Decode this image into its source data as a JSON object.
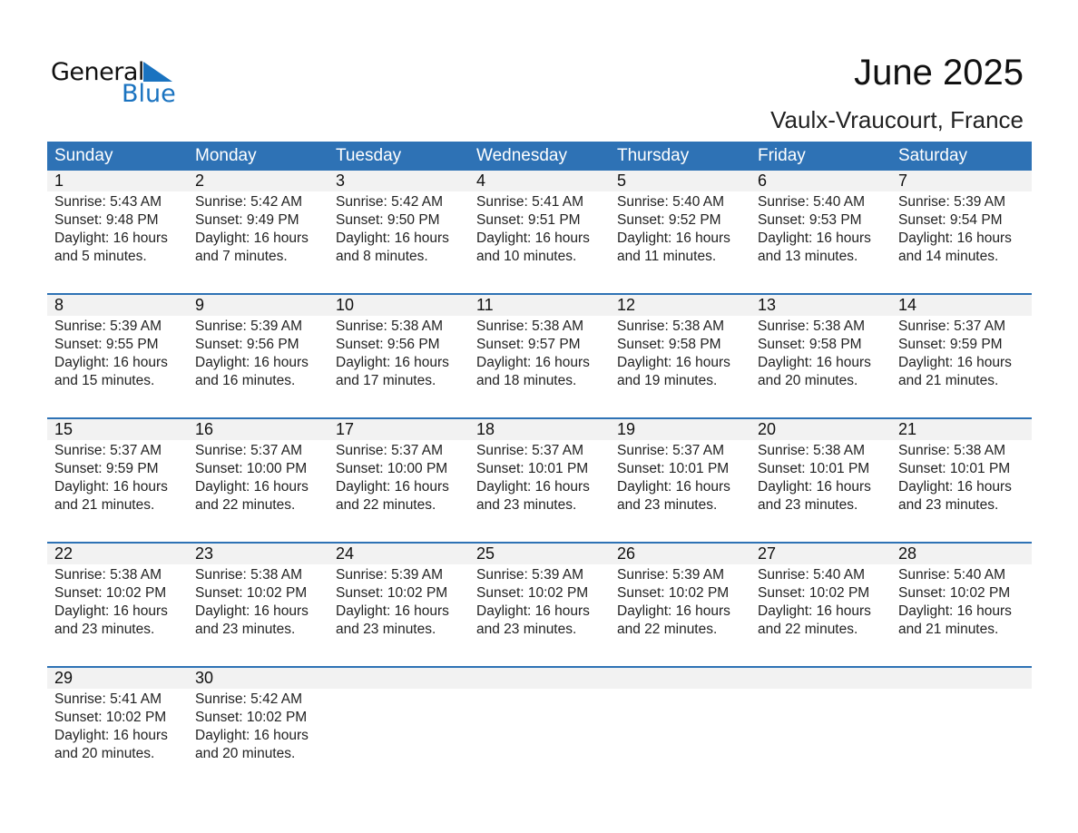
{
  "logo": {
    "word1": "General",
    "word2": "Blue"
  },
  "header": {
    "title": "June 2025",
    "location": "Vaulx-Vraucourt, France"
  },
  "colors": {
    "accent": "#2e72b5",
    "band": "#f2f2f2"
  },
  "weekdays": [
    "Sunday",
    "Monday",
    "Tuesday",
    "Wednesday",
    "Thursday",
    "Friday",
    "Saturday"
  ],
  "weeks": [
    [
      {
        "day": "1",
        "sunrise": "Sunrise: 5:43 AM",
        "sunset": "Sunset: 9:48 PM",
        "daylight": "Daylight: 16 hours",
        "minutes": "and 5 minutes."
      },
      {
        "day": "2",
        "sunrise": "Sunrise: 5:42 AM",
        "sunset": "Sunset: 9:49 PM",
        "daylight": "Daylight: 16 hours",
        "minutes": "and 7 minutes."
      },
      {
        "day": "3",
        "sunrise": "Sunrise: 5:42 AM",
        "sunset": "Sunset: 9:50 PM",
        "daylight": "Daylight: 16 hours",
        "minutes": "and 8 minutes."
      },
      {
        "day": "4",
        "sunrise": "Sunrise: 5:41 AM",
        "sunset": "Sunset: 9:51 PM",
        "daylight": "Daylight: 16 hours",
        "minutes": "and 10 minutes."
      },
      {
        "day": "5",
        "sunrise": "Sunrise: 5:40 AM",
        "sunset": "Sunset: 9:52 PM",
        "daylight": "Daylight: 16 hours",
        "minutes": "and 11 minutes."
      },
      {
        "day": "6",
        "sunrise": "Sunrise: 5:40 AM",
        "sunset": "Sunset: 9:53 PM",
        "daylight": "Daylight: 16 hours",
        "minutes": "and 13 minutes."
      },
      {
        "day": "7",
        "sunrise": "Sunrise: 5:39 AM",
        "sunset": "Sunset: 9:54 PM",
        "daylight": "Daylight: 16 hours",
        "minutes": "and 14 minutes."
      }
    ],
    [
      {
        "day": "8",
        "sunrise": "Sunrise: 5:39 AM",
        "sunset": "Sunset: 9:55 PM",
        "daylight": "Daylight: 16 hours",
        "minutes": "and 15 minutes."
      },
      {
        "day": "9",
        "sunrise": "Sunrise: 5:39 AM",
        "sunset": "Sunset: 9:56 PM",
        "daylight": "Daylight: 16 hours",
        "minutes": "and 16 minutes."
      },
      {
        "day": "10",
        "sunrise": "Sunrise: 5:38 AM",
        "sunset": "Sunset: 9:56 PM",
        "daylight": "Daylight: 16 hours",
        "minutes": "and 17 minutes."
      },
      {
        "day": "11",
        "sunrise": "Sunrise: 5:38 AM",
        "sunset": "Sunset: 9:57 PM",
        "daylight": "Daylight: 16 hours",
        "minutes": "and 18 minutes."
      },
      {
        "day": "12",
        "sunrise": "Sunrise: 5:38 AM",
        "sunset": "Sunset: 9:58 PM",
        "daylight": "Daylight: 16 hours",
        "minutes": "and 19 minutes."
      },
      {
        "day": "13",
        "sunrise": "Sunrise: 5:38 AM",
        "sunset": "Sunset: 9:58 PM",
        "daylight": "Daylight: 16 hours",
        "minutes": "and 20 minutes."
      },
      {
        "day": "14",
        "sunrise": "Sunrise: 5:37 AM",
        "sunset": "Sunset: 9:59 PM",
        "daylight": "Daylight: 16 hours",
        "minutes": "and 21 minutes."
      }
    ],
    [
      {
        "day": "15",
        "sunrise": "Sunrise: 5:37 AM",
        "sunset": "Sunset: 9:59 PM",
        "daylight": "Daylight: 16 hours",
        "minutes": "and 21 minutes."
      },
      {
        "day": "16",
        "sunrise": "Sunrise: 5:37 AM",
        "sunset": "Sunset: 10:00 PM",
        "daylight": "Daylight: 16 hours",
        "minutes": "and 22 minutes."
      },
      {
        "day": "17",
        "sunrise": "Sunrise: 5:37 AM",
        "sunset": "Sunset: 10:00 PM",
        "daylight": "Daylight: 16 hours",
        "minutes": "and 22 minutes."
      },
      {
        "day": "18",
        "sunrise": "Sunrise: 5:37 AM",
        "sunset": "Sunset: 10:01 PM",
        "daylight": "Daylight: 16 hours",
        "minutes": "and 23 minutes."
      },
      {
        "day": "19",
        "sunrise": "Sunrise: 5:37 AM",
        "sunset": "Sunset: 10:01 PM",
        "daylight": "Daylight: 16 hours",
        "minutes": "and 23 minutes."
      },
      {
        "day": "20",
        "sunrise": "Sunrise: 5:38 AM",
        "sunset": "Sunset: 10:01 PM",
        "daylight": "Daylight: 16 hours",
        "minutes": "and 23 minutes."
      },
      {
        "day": "21",
        "sunrise": "Sunrise: 5:38 AM",
        "sunset": "Sunset: 10:01 PM",
        "daylight": "Daylight: 16 hours",
        "minutes": "and 23 minutes."
      }
    ],
    [
      {
        "day": "22",
        "sunrise": "Sunrise: 5:38 AM",
        "sunset": "Sunset: 10:02 PM",
        "daylight": "Daylight: 16 hours",
        "minutes": "and 23 minutes."
      },
      {
        "day": "23",
        "sunrise": "Sunrise: 5:38 AM",
        "sunset": "Sunset: 10:02 PM",
        "daylight": "Daylight: 16 hours",
        "minutes": "and 23 minutes."
      },
      {
        "day": "24",
        "sunrise": "Sunrise: 5:39 AM",
        "sunset": "Sunset: 10:02 PM",
        "daylight": "Daylight: 16 hours",
        "minutes": "and 23 minutes."
      },
      {
        "day": "25",
        "sunrise": "Sunrise: 5:39 AM",
        "sunset": "Sunset: 10:02 PM",
        "daylight": "Daylight: 16 hours",
        "minutes": "and 23 minutes."
      },
      {
        "day": "26",
        "sunrise": "Sunrise: 5:39 AM",
        "sunset": "Sunset: 10:02 PM",
        "daylight": "Daylight: 16 hours",
        "minutes": "and 22 minutes."
      },
      {
        "day": "27",
        "sunrise": "Sunrise: 5:40 AM",
        "sunset": "Sunset: 10:02 PM",
        "daylight": "Daylight: 16 hours",
        "minutes": "and 22 minutes."
      },
      {
        "day": "28",
        "sunrise": "Sunrise: 5:40 AM",
        "sunset": "Sunset: 10:02 PM",
        "daylight": "Daylight: 16 hours",
        "minutes": "and 21 minutes."
      }
    ],
    [
      {
        "day": "29",
        "sunrise": "Sunrise: 5:41 AM",
        "sunset": "Sunset: 10:02 PM",
        "daylight": "Daylight: 16 hours",
        "minutes": "and 20 minutes."
      },
      {
        "day": "30",
        "sunrise": "Sunrise: 5:42 AM",
        "sunset": "Sunset: 10:02 PM",
        "daylight": "Daylight: 16 hours",
        "minutes": "and 20 minutes."
      }
    ]
  ]
}
